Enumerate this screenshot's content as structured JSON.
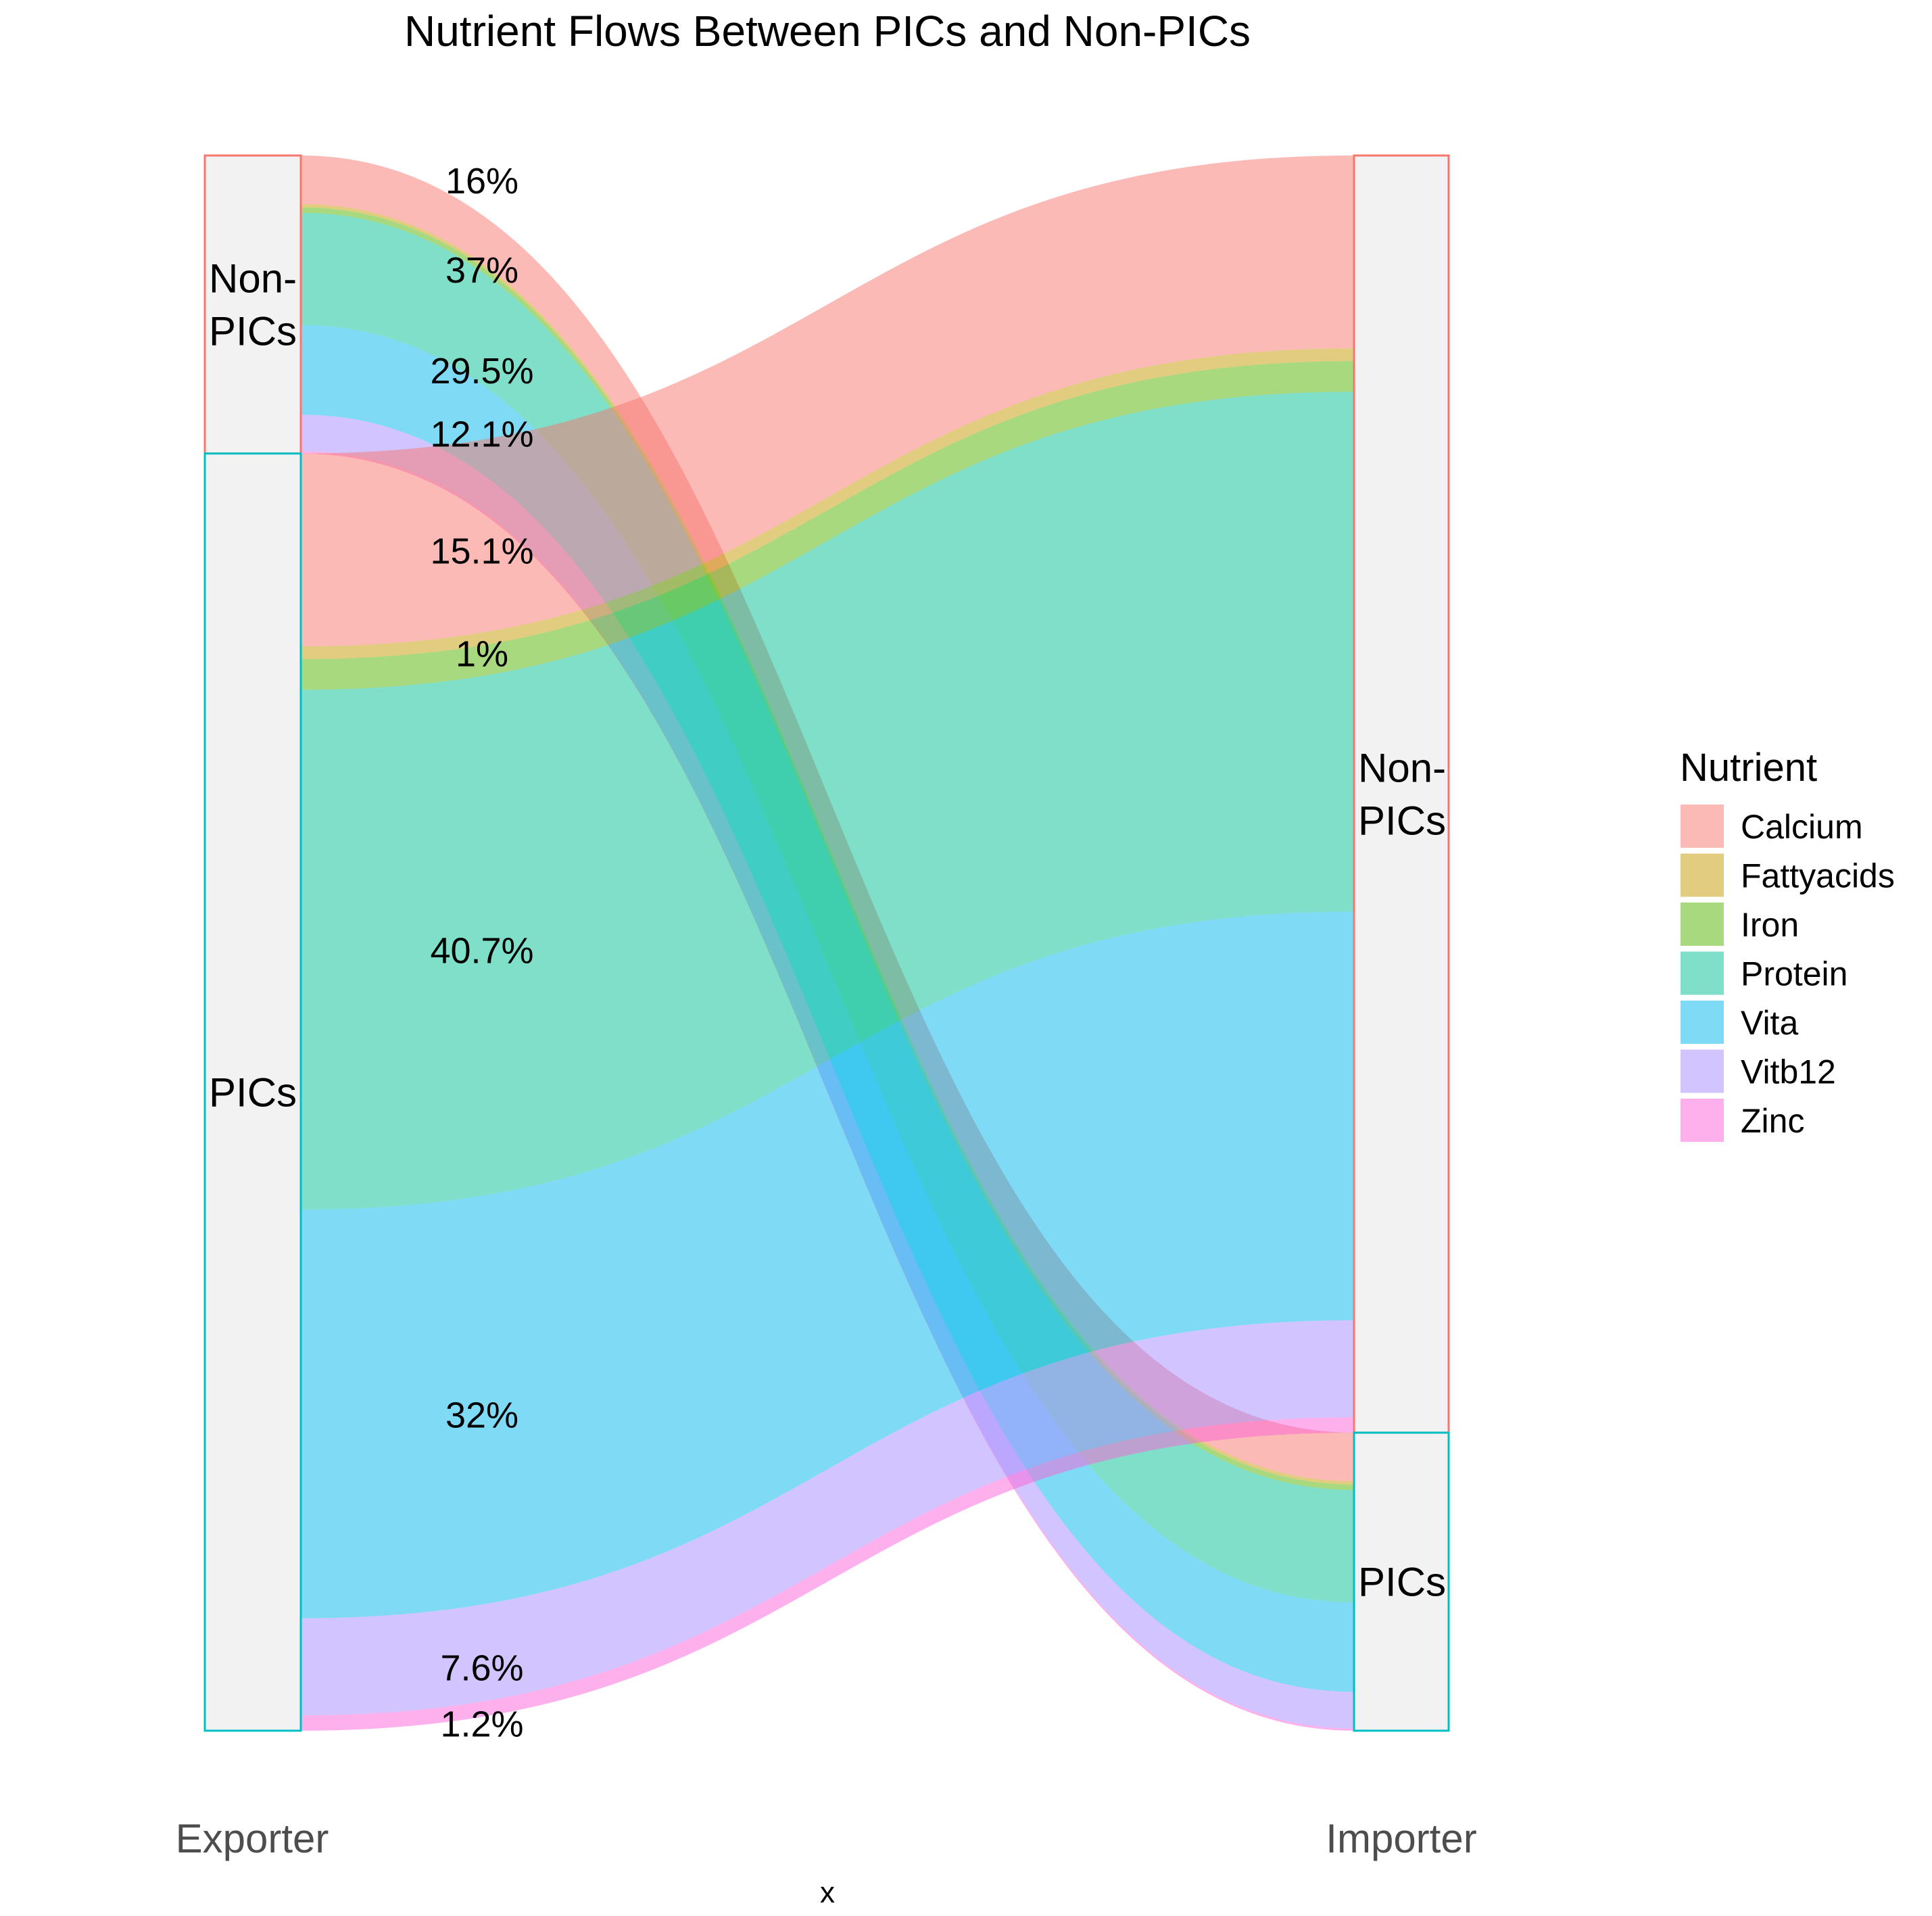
{
  "chart_data": {
    "type": "alluvial",
    "title": "Nutrient Flows Between PICs and Non-PICs",
    "xlabel": "x",
    "ylabel": "",
    "axes": [
      "Exporter",
      "Importer"
    ],
    "stratum_labels": {
      "exporter": [
        "Non-PICs",
        "PICs"
      ],
      "importer": [
        "Non-PICs",
        "PICs"
      ]
    },
    "legend": {
      "title": "Nutrient",
      "position": "right",
      "items": [
        "Calcium",
        "Fattyacids",
        "Iron",
        "Protein",
        "Vita",
        "Vitb12",
        "Zinc"
      ]
    },
    "colors": {
      "Calcium": "#F8766D",
      "Fattyacids": "#C49A00",
      "Iron": "#53B400",
      "Protein": "#00C094",
      "Vita": "#00B6EB",
      "Vitb12": "#A58AFF",
      "Zinc": "#FB61D7",
      "stratum_fill": "#F2F2F2",
      "border_non_pics": "#F8766D",
      "border_pics": "#00BFC4"
    },
    "flows": [
      {
        "from": "Non-PICs",
        "to": "PICs",
        "nutrient": "Calcium",
        "share": 0.16,
        "label": "16%"
      },
      {
        "from": "Non-PICs",
        "to": "PICs",
        "nutrient": "Fattyacids",
        "share": 0.011,
        "label": ""
      },
      {
        "from": "Non-PICs",
        "to": "PICs",
        "nutrient": "Iron",
        "share": 0.018,
        "label": ""
      },
      {
        "from": "Non-PICs",
        "to": "PICs",
        "nutrient": "Protein",
        "share": 0.37,
        "label": "37%"
      },
      {
        "from": "Non-PICs",
        "to": "PICs",
        "nutrient": "Vita",
        "share": 0.295,
        "label": "29.5%"
      },
      {
        "from": "Non-PICs",
        "to": "PICs",
        "nutrient": "Vitb12",
        "share": 0.121,
        "label": "12.1%"
      },
      {
        "from": "Non-PICs",
        "to": "PICs",
        "nutrient": "Zinc",
        "share": 0.007,
        "label": ""
      },
      {
        "from": "PICs",
        "to": "Non-PICs",
        "nutrient": "Calcium",
        "share": 0.151,
        "label": "15.1%"
      },
      {
        "from": "PICs",
        "to": "Non-PICs",
        "nutrient": "Fattyacids",
        "share": 0.01,
        "label": "1%"
      },
      {
        "from": "PICs",
        "to": "Non-PICs",
        "nutrient": "Iron",
        "share": 0.024,
        "label": ""
      },
      {
        "from": "PICs",
        "to": "Non-PICs",
        "nutrient": "Protein",
        "share": 0.407,
        "label": "40.7%"
      },
      {
        "from": "PICs",
        "to": "Non-PICs",
        "nutrient": "Vita",
        "share": 0.32,
        "label": "32%"
      },
      {
        "from": "PICs",
        "to": "Non-PICs",
        "nutrient": "Vitb12",
        "share": 0.076,
        "label": "7.6%"
      },
      {
        "from": "PICs",
        "to": "Non-PICs",
        "nutrient": "Zinc",
        "share": 0.012,
        "label": "1.2%"
      }
    ]
  }
}
